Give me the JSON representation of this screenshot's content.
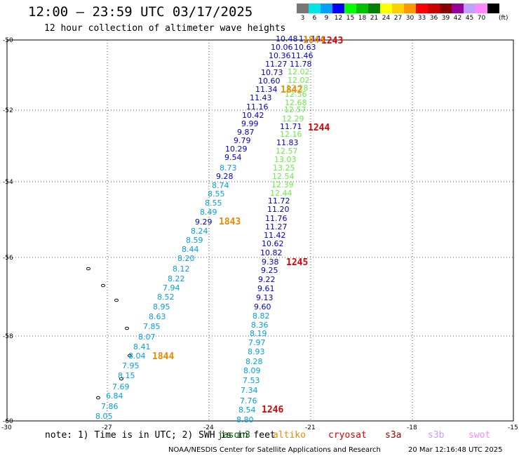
{
  "header": {
    "title": "12:00 – 23:59 UTC 03/17/2025",
    "subtitle": "12 hour collection of altimeter wave heights"
  },
  "colorbar": {
    "unit_label": "(ft)",
    "bins": [
      {
        "label": "3",
        "color": "#777777"
      },
      {
        "label": "6",
        "color": "#00e6e6"
      },
      {
        "label": "9",
        "color": "#00a0ff"
      },
      {
        "label": "12",
        "color": "#0000ff"
      },
      {
        "label": "15",
        "color": "#00ff00"
      },
      {
        "label": "18",
        "color": "#00c000"
      },
      {
        "label": "21",
        "color": "#008000"
      },
      {
        "label": "24",
        "color": "#ffff00"
      },
      {
        "label": "27",
        "color": "#ffd000"
      },
      {
        "label": "30",
        "color": "#ff9900"
      },
      {
        "label": "33",
        "color": "#ff0000"
      },
      {
        "label": "36",
        "color": "#cc0000"
      },
      {
        "label": "39",
        "color": "#880000"
      },
      {
        "label": "42",
        "color": "#990099"
      },
      {
        "label": "45",
        "color": "#c0a0ff"
      },
      {
        "label": "70",
        "color": "#ff88ff"
      },
      {
        "label": "",
        "color": "#000000"
      }
    ]
  },
  "axes": {
    "lat_labels": [
      "-50",
      "-52",
      "-54",
      "-56",
      "-58",
      "-60"
    ],
    "lon_labels": [
      "-30",
      "-27",
      "-24",
      "-21",
      "-18",
      "-15"
    ]
  },
  "colors": {
    "dark_blue": "#0000cc",
    "light_blue": "#00a0e0",
    "light_green": "#66ee44",
    "orange": "#ee8800",
    "red": "#dd0000"
  },
  "tracks": {
    "track_1244": {
      "color_hint": "green track",
      "points": [
        {
          "text": "12.02",
          "c": "light_green"
        },
        {
          "text": "12.02",
          "c": "light_green"
        },
        {
          "text": "12.28",
          "c": "light_green"
        },
        {
          "text": "12.56",
          "c": "light_green"
        },
        {
          "text": "12.68",
          "c": "light_green"
        },
        {
          "text": "12.57",
          "c": "light_green"
        },
        {
          "text": "12.29",
          "c": "light_green"
        },
        {
          "text": "11.71",
          "c": "dark_blue"
        },
        {
          "text": "12.16",
          "c": "light_green"
        },
        {
          "text": "11.83",
          "c": "dark_blue"
        },
        {
          "text": "12.57",
          "c": "light_green"
        },
        {
          "text": "13.03",
          "c": "light_green"
        },
        {
          "text": "13.25",
          "c": "light_green"
        },
        {
          "text": "12.54",
          "c": "light_green"
        },
        {
          "text": "12.39",
          "c": "light_green"
        },
        {
          "text": "12.44",
          "c": "light_green"
        }
      ]
    },
    "track_1243": {
      "points": [
        {
          "text": "10.48",
          "c": "dark_blue"
        },
        {
          "text": "11.14",
          "c": "dark_blue"
        },
        {
          "text": "10.06",
          "c": "dark_blue"
        },
        {
          "text": "10.63",
          "c": "dark_blue"
        },
        {
          "text": "10.36",
          "c": "dark_blue"
        },
        {
          "text": "11.46",
          "c": "dark_blue"
        },
        {
          "text": "11.27",
          "c": "dark_blue"
        },
        {
          "text": "11.78",
          "c": "dark_blue"
        },
        {
          "text": "10.73",
          "c": "dark_blue"
        },
        {
          "text": "10.60",
          "c": "dark_blue"
        },
        {
          "text": "11.34",
          "c": "dark_blue"
        },
        {
          "text": "11.43",
          "c": "dark_blue"
        },
        {
          "text": "11.16",
          "c": "dark_blue"
        },
        {
          "text": "10.42",
          "c": "dark_blue"
        },
        {
          "text": "9.99",
          "c": "dark_blue"
        },
        {
          "text": "9.87",
          "c": "dark_blue"
        },
        {
          "text": "9.79",
          "c": "dark_blue"
        },
        {
          "text": "10.29",
          "c": "dark_blue"
        },
        {
          "text": "9.54",
          "c": "dark_blue"
        },
        {
          "text": "8.73",
          "c": "light_blue"
        },
        {
          "text": "9.28",
          "c": "dark_blue"
        },
        {
          "text": "8.74",
          "c": "light_blue"
        },
        {
          "text": "8.55",
          "c": "light_blue"
        },
        {
          "text": "8.55",
          "c": "light_blue"
        },
        {
          "text": "8.49",
          "c": "light_blue"
        },
        {
          "text": "9.29",
          "c": "dark_blue"
        },
        {
          "text": "8.24",
          "c": "light_blue"
        },
        {
          "text": "8.59",
          "c": "light_blue"
        },
        {
          "text": "8.44",
          "c": "light_blue"
        },
        {
          "text": "8.20",
          "c": "light_blue"
        },
        {
          "text": "8.12",
          "c": "light_blue"
        },
        {
          "text": "8.22",
          "c": "light_blue"
        },
        {
          "text": "7.94",
          "c": "light_blue"
        },
        {
          "text": "8.52",
          "c": "light_blue"
        },
        {
          "text": "8.95",
          "c": "light_blue"
        },
        {
          "text": "8.63",
          "c": "light_blue"
        },
        {
          "text": "7.85",
          "c": "light_blue"
        },
        {
          "text": "8.07",
          "c": "light_blue"
        },
        {
          "text": "8.41",
          "c": "light_blue"
        },
        {
          "text": "8.04",
          "c": "light_blue"
        },
        {
          "text": "7.95",
          "c": "light_blue"
        },
        {
          "text": "8.15",
          "c": "light_blue"
        },
        {
          "text": "7.69",
          "c": "light_blue"
        },
        {
          "text": "6.84",
          "c": "light_blue"
        },
        {
          "text": "7.86",
          "c": "light_blue"
        },
        {
          "text": "8.05",
          "c": "light_blue"
        }
      ]
    },
    "track_1245": {
      "points": [
        {
          "text": "11.72",
          "c": "dark_blue"
        },
        {
          "text": "11.20",
          "c": "dark_blue"
        },
        {
          "text": "11.76",
          "c": "dark_blue"
        },
        {
          "text": "11.27",
          "c": "dark_blue"
        },
        {
          "text": "11.42",
          "c": "dark_blue"
        },
        {
          "text": "10.62",
          "c": "dark_blue"
        },
        {
          "text": "10.82",
          "c": "dark_blue"
        },
        {
          "text": "9.38",
          "c": "dark_blue"
        },
        {
          "text": "9.25",
          "c": "dark_blue"
        },
        {
          "text": "9.22",
          "c": "dark_blue"
        },
        {
          "text": "9.61",
          "c": "dark_blue"
        },
        {
          "text": "9.13",
          "c": "dark_blue"
        },
        {
          "text": "9.60",
          "c": "dark_blue"
        },
        {
          "text": "8.82",
          "c": "light_blue"
        },
        {
          "text": "8.36",
          "c": "light_blue"
        },
        {
          "text": "8.19",
          "c": "light_blue"
        },
        {
          "text": "7.97",
          "c": "light_blue"
        },
        {
          "text": "8.93",
          "c": "light_blue"
        },
        {
          "text": "8.28",
          "c": "light_blue"
        },
        {
          "text": "8.09",
          "c": "light_blue"
        },
        {
          "text": "7.53",
          "c": "light_blue"
        },
        {
          "text": "7.34",
          "c": "light_blue"
        },
        {
          "text": "7.76",
          "c": "light_blue"
        },
        {
          "text": "8.54",
          "c": "light_blue"
        },
        {
          "text": "8.80",
          "c": "light_blue"
        }
      ]
    }
  },
  "pass_labels": [
    {
      "text": "1243",
      "c": "red"
    },
    {
      "text": "1844",
      "c": "orange"
    },
    {
      "text": "1842",
      "c": "orange"
    },
    {
      "text": "1244",
      "c": "red"
    },
    {
      "text": "1843",
      "c": "orange"
    },
    {
      "text": "1245",
      "c": "red"
    },
    {
      "text": "1844",
      "c": "orange"
    },
    {
      "text": "1246",
      "c": "red"
    }
  ],
  "footer": {
    "note": "note: 1) Time is in UTC; 2) SWH is in feet",
    "legend": [
      {
        "text": "jason3",
        "color": "#006600"
      },
      {
        "text": "altiko",
        "color": "#ee8800"
      },
      {
        "text": "cryosat",
        "color": "#dd0000"
      },
      {
        "text": "s3a",
        "color": "#990000"
      },
      {
        "text": "s3b",
        "color": "#c0a0ff"
      },
      {
        "text": "swot",
        "color": "#ff88ff"
      }
    ],
    "credit": "NOAA/NESDIS Center for Satellite Applications and Research",
    "stamp": "20 Mar 12:16:48 UTC 2025"
  }
}
